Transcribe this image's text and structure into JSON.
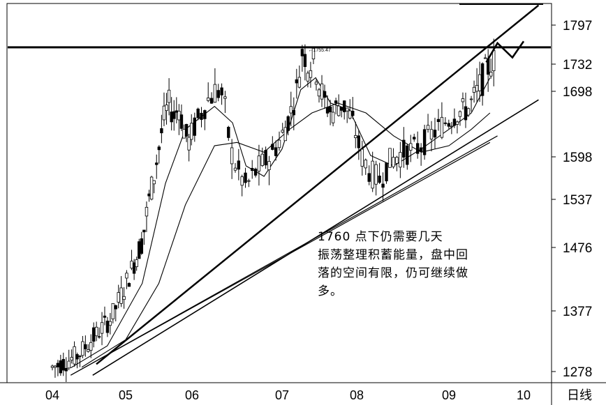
{
  "chart_data": {
    "type": "candlestick",
    "y_ticks": [
      "1797",
      "1732",
      "1698",
      "1598",
      "1537",
      "1476",
      "1377",
      "1278"
    ],
    "x_ticks": [
      "04",
      "05",
      "06",
      "07",
      "08",
      "09",
      "10"
    ],
    "axis_label": "日线",
    "peak_label": "1755.47",
    "resistance_level": 1760,
    "ylim": [
      1260,
      1830
    ],
    "grid": false,
    "annotation": "1760 点下仍需要几天\n振荡整理积蓄能量，盘中回\n落的空间有限，仍可继续做\n多。",
    "price_path": [
      [
        0,
        1285
      ],
      [
        0.3,
        1292
      ],
      [
        0.7,
        1305
      ],
      [
        1.0,
        1325
      ],
      [
        1.3,
        1345
      ],
      [
        1.6,
        1365
      ],
      [
        1.9,
        1405
      ],
      [
        2.2,
        1445
      ],
      [
        2.5,
        1485
      ],
      [
        2.7,
        1535
      ],
      [
        2.85,
        1570
      ],
      [
        3.0,
        1610
      ],
      [
        3.15,
        1655
      ],
      [
        3.3,
        1680
      ],
      [
        3.45,
        1660
      ],
      [
        3.6,
        1675
      ],
      [
        3.75,
        1640
      ],
      [
        3.9,
        1620
      ],
      [
        4.1,
        1650
      ],
      [
        4.35,
        1685
      ],
      [
        4.55,
        1700
      ],
      [
        4.7,
        1690
      ],
      [
        4.85,
        1610
      ],
      [
        5.0,
        1580
      ],
      [
        5.2,
        1555
      ],
      [
        5.45,
        1580
      ],
      [
        5.75,
        1600
      ],
      [
        6.0,
        1630
      ],
      [
        6.2,
        1660
      ],
      [
        6.4,
        1700
      ],
      [
        6.55,
        1755
      ],
      [
        6.7,
        1730
      ],
      [
        6.85,
        1740
      ],
      [
        7.0,
        1705
      ],
      [
        7.15,
        1680
      ],
      [
        7.35,
        1665
      ],
      [
        7.55,
        1680
      ],
      [
        7.75,
        1670
      ],
      [
        7.95,
        1640
      ],
      [
        8.1,
        1600
      ],
      [
        8.3,
        1575
      ],
      [
        8.5,
        1565
      ],
      [
        8.7,
        1590
      ],
      [
        9.0,
        1605
      ],
      [
        9.3,
        1610
      ],
      [
        9.6,
        1630
      ],
      [
        9.9,
        1650
      ],
      [
        10.2,
        1665
      ],
      [
        10.5,
        1670
      ],
      [
        10.8,
        1700
      ],
      [
        11.0,
        1725
      ],
      [
        11.2,
        1740
      ]
    ],
    "ma_short": [
      [
        0.5,
        1284
      ],
      [
        1.5,
        1320
      ],
      [
        2.5,
        1420
      ],
      [
        3.2,
        1560
      ],
      [
        3.8,
        1640
      ],
      [
        4.5,
        1675
      ],
      [
        4.9,
        1650
      ],
      [
        5.2,
        1585
      ],
      [
        5.6,
        1570
      ],
      [
        6.0,
        1610
      ],
      [
        6.5,
        1700
      ],
      [
        6.9,
        1715
      ],
      [
        7.3,
        1680
      ],
      [
        7.8,
        1670
      ],
      [
        8.3,
        1600
      ],
      [
        8.8,
        1585
      ],
      [
        9.4,
        1610
      ],
      [
        10.0,
        1640
      ],
      [
        10.6,
        1665
      ],
      [
        11.1,
        1715
      ]
    ],
    "ma_long": [
      [
        0.8,
        1285
      ],
      [
        2.0,
        1330
      ],
      [
        3.0,
        1420
      ],
      [
        3.8,
        1530
      ],
      [
        4.5,
        1615
      ],
      [
        5.0,
        1620
      ],
      [
        5.6,
        1605
      ],
      [
        6.2,
        1640
      ],
      [
        6.8,
        1665
      ],
      [
        7.5,
        1680
      ],
      [
        8.2,
        1665
      ],
      [
        8.8,
        1630
      ],
      [
        9.4,
        1605
      ],
      [
        10.0,
        1615
      ],
      [
        10.6,
        1640
      ],
      [
        11.1,
        1665
      ]
    ],
    "trend_line_upper": [
      [
        1.2,
        1290
      ],
      [
        12.4,
        1830
      ]
    ],
    "trend_line_lower": [
      [
        1.1,
        1272
      ],
      [
        12.4,
        1685
      ]
    ],
    "trend_line_mid1": [
      [
        0.5,
        1272
      ],
      [
        11.3,
        1630
      ]
    ],
    "trend_line_mid2": [
      [
        0.5,
        1272
      ],
      [
        11.1,
        1620
      ]
    ],
    "projection": [
      [
        11.0,
        1735
      ],
      [
        11.3,
        1767
      ],
      [
        11.7,
        1743
      ],
      [
        12.0,
        1770
      ]
    ]
  }
}
